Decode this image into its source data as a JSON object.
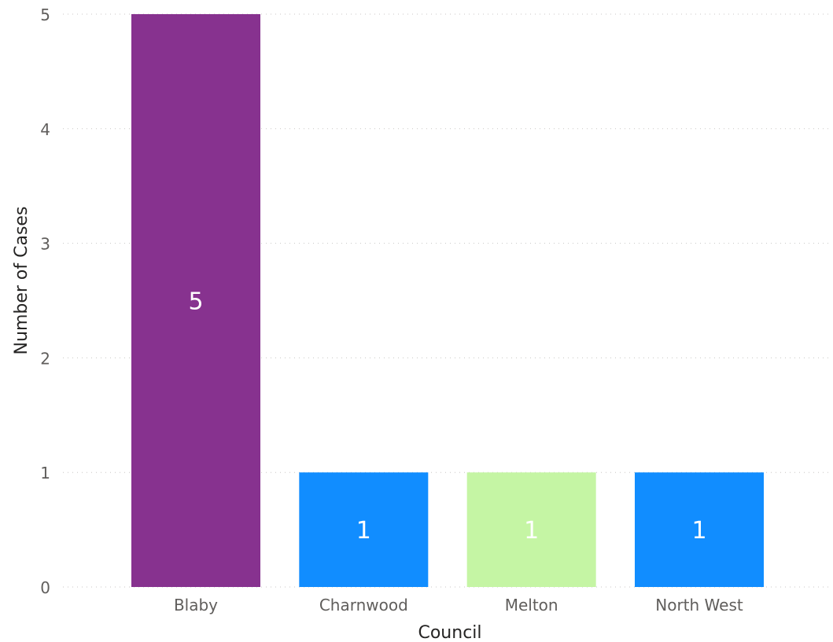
{
  "chart_data": {
    "type": "bar",
    "categories": [
      "Blaby",
      "Charnwood",
      "Melton",
      "North West"
    ],
    "values": [
      5,
      1,
      1,
      1
    ],
    "data_labels": [
      "5",
      "1",
      "1",
      "1"
    ],
    "bar_colors": [
      "#87328F",
      "#118DFF",
      "#C5F5A4",
      "#118DFF"
    ],
    "data_label_color": "#FFFFFF",
    "title": "",
    "xlabel": "Council",
    "ylabel": "Number of Cases",
    "ylim": [
      0,
      5
    ],
    "yticks": [
      0,
      1,
      2,
      3,
      4,
      5
    ],
    "ytick_labels": [
      "0",
      "1",
      "2",
      "3",
      "4",
      "5"
    ],
    "grid": true,
    "grid_style": "dotted",
    "legend": "none"
  }
}
